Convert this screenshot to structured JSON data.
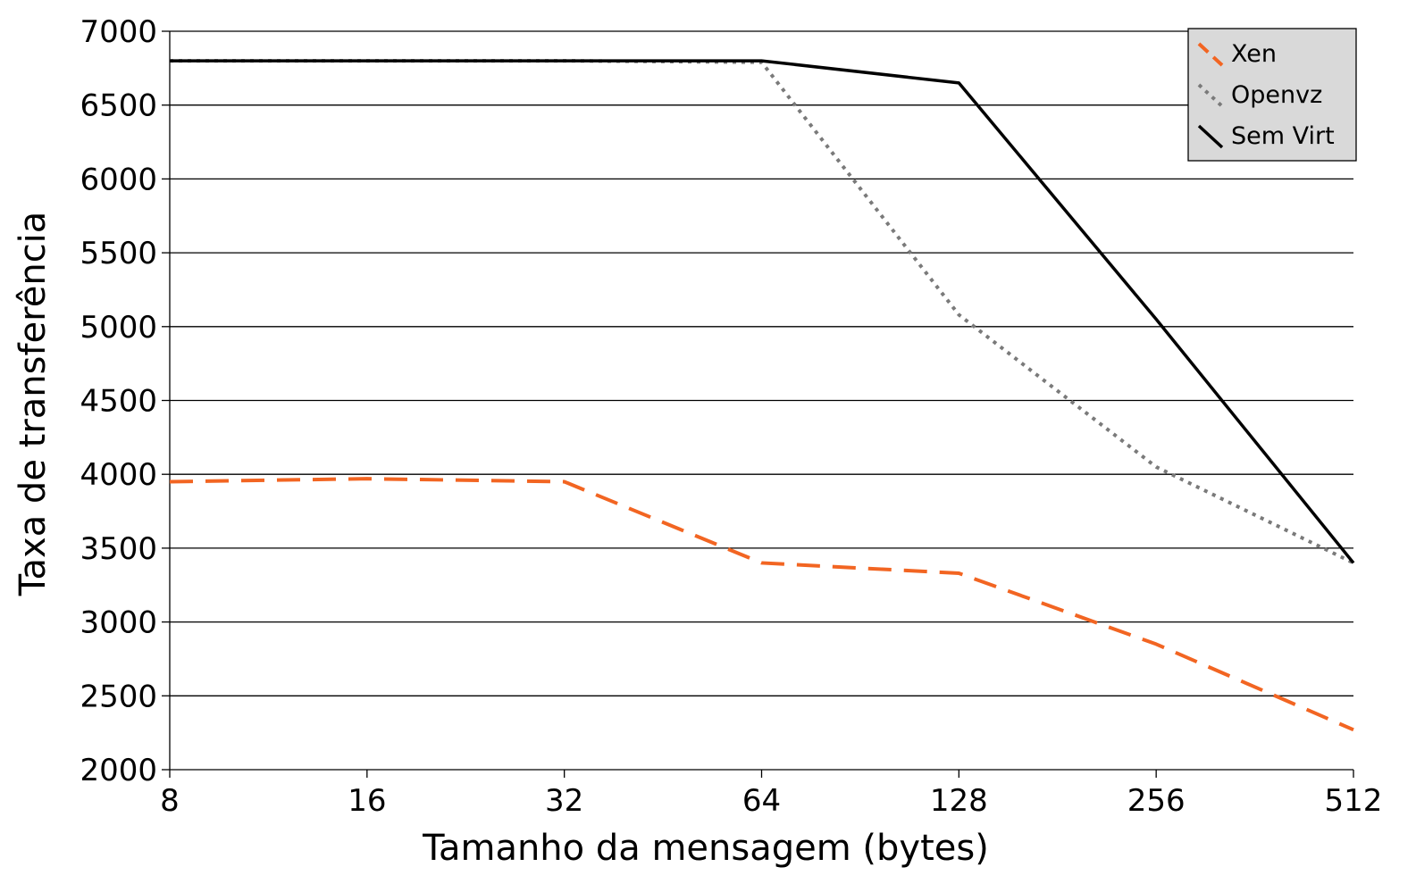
{
  "chart_data": {
    "type": "line",
    "title": "",
    "xlabel": "Tamanho da mensagem (bytes)",
    "ylabel": "Taxa de transferência",
    "x_scale": "log2",
    "categories": [
      "8",
      "16",
      "32",
      "64",
      "128",
      "256",
      "512"
    ],
    "x": [
      8,
      16,
      32,
      64,
      128,
      256,
      512
    ],
    "ylim": [
      2000,
      7000
    ],
    "yticks": [
      "2000",
      "2500",
      "3000",
      "3500",
      "4000",
      "4500",
      "5000",
      "5500",
      "6000",
      "6500",
      "7000"
    ],
    "grid": "horizontal",
    "legend_position": "top-right",
    "series": [
      {
        "name": "Xen",
        "color": "#f26522",
        "style": "dashed",
        "values": [
          3950,
          3970,
          3950,
          3400,
          3330,
          2850,
          2270
        ]
      },
      {
        "name": "Openvz",
        "color": "#7a7a7a",
        "style": "dotted",
        "values": [
          6800,
          6800,
          6800,
          6790,
          5080,
          4050,
          3400
        ]
      },
      {
        "name": "Sem Virt",
        "color": "#000000",
        "style": "solid",
        "values": [
          6800,
          6800,
          6800,
          6800,
          6650,
          5050,
          3400
        ]
      }
    ]
  }
}
